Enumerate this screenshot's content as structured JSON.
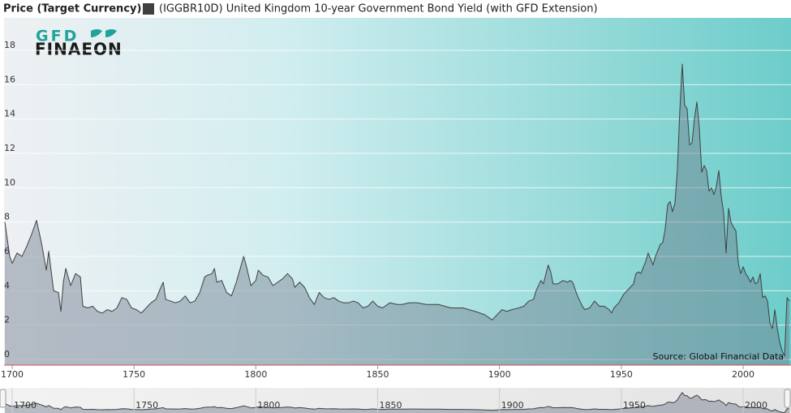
{
  "chart_data": {
    "type": "area",
    "y_axis_label": "Price (Target Currency)",
    "source": "Source: Global Financial Data",
    "logo": {
      "top": "GFD",
      "bottom": "FINAEON"
    },
    "xlim": [
      1697,
      2019.3
    ],
    "xticks": [
      1700,
      1750,
      1800,
      1850,
      1900,
      1950,
      2000
    ],
    "ylim": [
      0,
      19.8
    ],
    "yticks": [
      0,
      2,
      4,
      6,
      8,
      10,
      12,
      14,
      16,
      18
    ],
    "grid": true,
    "series": [
      {
        "name": "(IGGBR10D) United Kingdom 10-year Government Bond Yield (with GFD Extension)",
        "color": "#404040",
        "x": [
          1697,
          1699,
          1700,
          1702,
          1704,
          1706,
          1708,
          1710,
          1712,
          1714,
          1715,
          1717,
          1719,
          1720,
          1721,
          1722,
          1724,
          1726,
          1728,
          1729,
          1731,
          1733,
          1735,
          1737,
          1739,
          1741,
          1743,
          1745,
          1747,
          1749,
          1751,
          1753,
          1755,
          1757,
          1759,
          1761,
          1762,
          1763,
          1765,
          1767,
          1769,
          1771,
          1773,
          1775,
          1777,
          1779,
          1780,
          1782,
          1783,
          1784,
          1786,
          1788,
          1790,
          1792,
          1793,
          1795,
          1796,
          1798,
          1800,
          1801,
          1803,
          1805,
          1807,
          1809,
          1811,
          1813,
          1815,
          1816,
          1818,
          1820,
          1822,
          1824,
          1826,
          1828,
          1830,
          1832,
          1834,
          1836,
          1838,
          1840,
          1842,
          1844,
          1846,
          1848,
          1850,
          1852,
          1855,
          1858,
          1860,
          1863,
          1866,
          1870,
          1875,
          1880,
          1885,
          1890,
          1894,
          1897,
          1899,
          1901,
          1903,
          1905,
          1908,
          1910,
          1912,
          1914,
          1915,
          1917,
          1918,
          1920,
          1921,
          1922,
          1924,
          1926,
          1928,
          1929,
          1930,
          1931,
          1932,
          1933,
          1934,
          1935,
          1937,
          1939,
          1941,
          1943,
          1945,
          1946,
          1947,
          1949,
          1951,
          1953,
          1955,
          1956,
          1957,
          1958,
          1960,
          1961,
          1963,
          1964,
          1966,
          1967,
          1968,
          1969,
          1970,
          1971,
          1972,
          1973,
          1974,
          1975,
          1976,
          1977,
          1978,
          1979,
          1980,
          1981,
          1982,
          1983,
          1984,
          1985,
          1986,
          1987,
          1988,
          1989,
          1990,
          1991,
          1992,
          1993,
          1994,
          1995,
          1996,
          1997,
          1998,
          1999,
          2000,
          2001,
          2002,
          2003,
          2004,
          2005,
          2006,
          2007,
          2008,
          2009,
          2010,
          2011,
          2012,
          2013,
          2014,
          2015,
          2016,
          2017,
          2018,
          2019
        ],
        "values": [
          8.0,
          6.0,
          5.6,
          6.2,
          6.0,
          6.6,
          7.3,
          8.1,
          6.8,
          5.2,
          6.3,
          4.0,
          3.9,
          2.8,
          4.5,
          5.3,
          4.3,
          5.0,
          4.8,
          3.1,
          3.0,
          3.1,
          2.8,
          2.7,
          2.9,
          2.8,
          3.0,
          3.6,
          3.5,
          3.0,
          2.9,
          2.7,
          3.0,
          3.3,
          3.5,
          4.2,
          4.5,
          3.5,
          3.4,
          3.3,
          3.4,
          3.7,
          3.3,
          3.4,
          3.9,
          4.8,
          4.9,
          5.0,
          5.3,
          4.5,
          4.6,
          3.9,
          3.7,
          4.5,
          5.0,
          6.0,
          5.5,
          4.3,
          4.6,
          5.2,
          4.9,
          4.8,
          4.3,
          4.5,
          4.7,
          5.0,
          4.7,
          4.2,
          4.5,
          4.2,
          3.6,
          3.2,
          3.9,
          3.6,
          3.5,
          3.6,
          3.4,
          3.3,
          3.3,
          3.4,
          3.3,
          3.0,
          3.1,
          3.4,
          3.1,
          3.0,
          3.3,
          3.2,
          3.2,
          3.3,
          3.3,
          3.2,
          3.2,
          3.0,
          3.0,
          2.8,
          2.6,
          2.3,
          2.6,
          2.9,
          2.8,
          2.9,
          3.0,
          3.1,
          3.4,
          3.5,
          4.0,
          4.6,
          4.4,
          5.5,
          5.1,
          4.4,
          4.4,
          4.6,
          4.5,
          4.6,
          4.5,
          4.1,
          3.7,
          3.4,
          3.1,
          2.9,
          3.0,
          3.4,
          3.1,
          3.1,
          2.9,
          2.7,
          3.0,
          3.3,
          3.8,
          4.1,
          4.4,
          5.0,
          5.1,
          5.0,
          5.7,
          6.2,
          5.5,
          6.0,
          6.7,
          6.8,
          7.6,
          9.0,
          9.2,
          8.6,
          9.1,
          11.0,
          14.5,
          17.2,
          14.8,
          14.6,
          12.5,
          12.6,
          14.0,
          15.0,
          13.5,
          10.9,
          11.3,
          11.0,
          9.8,
          10.0,
          9.6,
          10.1,
          11.0,
          9.5,
          8.5,
          6.2,
          8.8,
          8.0,
          7.7,
          7.5,
          5.6,
          5.0,
          5.4,
          5.0,
          4.8,
          4.5,
          4.8,
          4.4,
          4.5,
          5.0,
          3.6,
          3.7,
          3.4,
          2.1,
          1.8,
          2.9,
          1.8,
          1.0,
          0.5,
          0.2,
          3.6,
          3.4
        ]
      }
    ]
  }
}
